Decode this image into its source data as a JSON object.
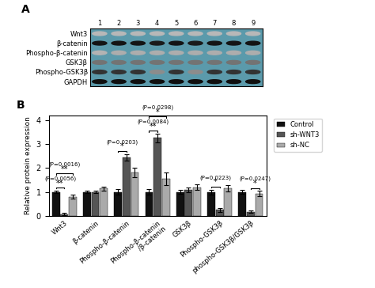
{
  "chart_data": [
    {
      "type": "blot",
      "title": "A",
      "categories": [
        "1",
        "2",
        "3",
        "4",
        "5",
        "6",
        "7",
        "8",
        "9"
      ],
      "rows": [
        "Wnt3",
        "β-catenin",
        "Phospho-β-catenin",
        "GSK3β",
        "Phospho-GSK3β",
        "GAPDH"
      ],
      "cells": [
        [
          0.72,
          0.72,
          0.72,
          0.72,
          0.72,
          0.72,
          0.72,
          0.72,
          0.72
        ],
        [
          0.08,
          0.08,
          0.08,
          0.1,
          0.08,
          0.1,
          0.08,
          0.08,
          0.08
        ],
        [
          0.7,
          0.68,
          0.68,
          0.68,
          0.68,
          0.68,
          0.68,
          0.68,
          0.68
        ],
        [
          0.45,
          0.45,
          0.45,
          0.45,
          0.45,
          0.45,
          0.45,
          0.45,
          0.45
        ],
        [
          0.2,
          0.2,
          0.2,
          0.55,
          0.2,
          0.55,
          0.2,
          0.2,
          0.2
        ],
        [
          0.06,
          0.06,
          0.06,
          0.06,
          0.06,
          0.06,
          0.06,
          0.06,
          0.06
        ]
      ],
      "color": "#5b9aab"
    },
    {
      "type": "bar",
      "title": "B",
      "categories": [
        "Wnt3",
        "β-catenin",
        "Phospho-β-catenin",
        "Phospho-β-catenin\n/β-catenin",
        "GSK3β",
        "Phospho-GSK3β",
        "phospho-GSK3β/GSK3β"
      ],
      "series": [
        {
          "name": "Control",
          "color": "#111111",
          "values": [
            1.0,
            1.0,
            1.0,
            1.0,
            1.0,
            1.0,
            1.0
          ],
          "errors": [
            0.06,
            0.05,
            0.12,
            0.12,
            0.08,
            0.1,
            0.09
          ]
        },
        {
          "name": "sh-WNT3",
          "color": "#555555",
          "values": [
            0.08,
            1.0,
            2.45,
            3.25,
            1.1,
            0.25,
            0.18
          ],
          "errors": [
            0.04,
            0.06,
            0.13,
            0.18,
            0.1,
            0.07,
            0.05
          ]
        },
        {
          "name": "sh-NC",
          "color": "#aaaaaa",
          "values": [
            0.8,
            1.15,
            1.82,
            1.55,
            1.2,
            1.15,
            0.93
          ],
          "errors": [
            0.09,
            0.08,
            0.2,
            0.25,
            0.11,
            0.13,
            0.11
          ]
        }
      ],
      "ylabel": "Relative protein expression",
      "ylim": [
        0,
        4.2
      ],
      "yticks": [
        0,
        1,
        2,
        3,
        4
      ],
      "legend": "upper left",
      "annotations": [
        {
          "category": "Wnt3",
          "from": "Control",
          "to": "sh-NC",
          "text": "**",
          "p_label": "(P=0.0016)"
        },
        {
          "category": "Wnt3",
          "from": "Control",
          "to": "sh-WNT3",
          "text": "**",
          "p_label": "(P=0.0056)"
        },
        {
          "category": "Phospho-β-catenin",
          "from": "Control",
          "to": "sh-WNT3",
          "text": "*",
          "p_label": "(P=0.0203)"
        },
        {
          "category": "Phospho-β-catenin\n/β-catenin",
          "from": "Control",
          "to": "sh-WNT3",
          "text": "**",
          "p_label": "(P=0.0084)"
        },
        {
          "category": "Phospho-β-catenin\n/β-catenin",
          "from": "Control",
          "to": "sh-NC",
          "text": "*",
          "p_label": "(P=0.0298)"
        },
        {
          "category": "Phospho-GSK3β",
          "from": "Control",
          "to": "sh-WNT3",
          "text": "*",
          "p_label": "(P=0.0223)"
        },
        {
          "category": "phospho-GSK3β/GSK3β",
          "from": "sh-WNT3",
          "to": "sh-NC",
          "text": "*",
          "p_label": "(P=0.0247)"
        }
      ]
    }
  ]
}
